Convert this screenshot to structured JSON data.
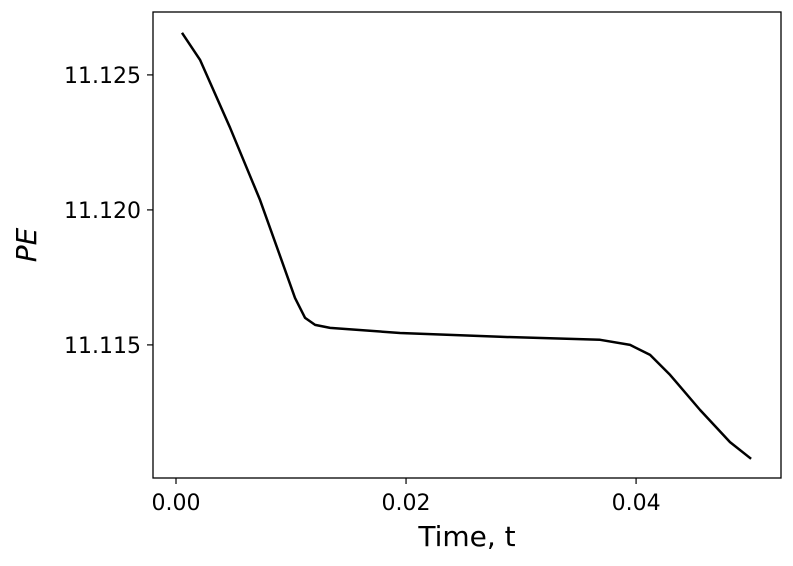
{
  "chart_data": {
    "type": "line",
    "xlabel": "Time, t",
    "ylabel": "PE",
    "x": [
      0.00052,
      0.00209,
      0.0047,
      0.0073,
      0.00904,
      0.01035,
      0.01122,
      0.01209,
      0.0134,
      0.01948,
      0.02817,
      0.03687,
      0.03948,
      0.04122,
      0.04296,
      0.04557,
      0.04817,
      0.05
    ],
    "series": [
      {
        "color": "#000000",
        "values": [
          11.12656,
          11.12556,
          11.12304,
          11.12037,
          11.1183,
          11.11674,
          11.116,
          11.11574,
          11.11563,
          11.11544,
          11.1153,
          11.11519,
          11.115,
          11.11463,
          11.11389,
          11.11259,
          11.1114,
          11.11078
        ]
      }
    ],
    "xlim": [
      -0.002,
      0.0526
    ],
    "ylim": [
      11.11007,
      11.12733
    ],
    "xticks": [
      {
        "value": 0,
        "label": "0.00"
      },
      0.02,
      0.04
    ],
    "yticks": [
      {
        "value": 11.115,
        "label": "11.115"
      },
      {
        "value": 11.12,
        "label": "11.120"
      },
      {
        "value": 11.125,
        "label": "11.125"
      }
    ]
  }
}
